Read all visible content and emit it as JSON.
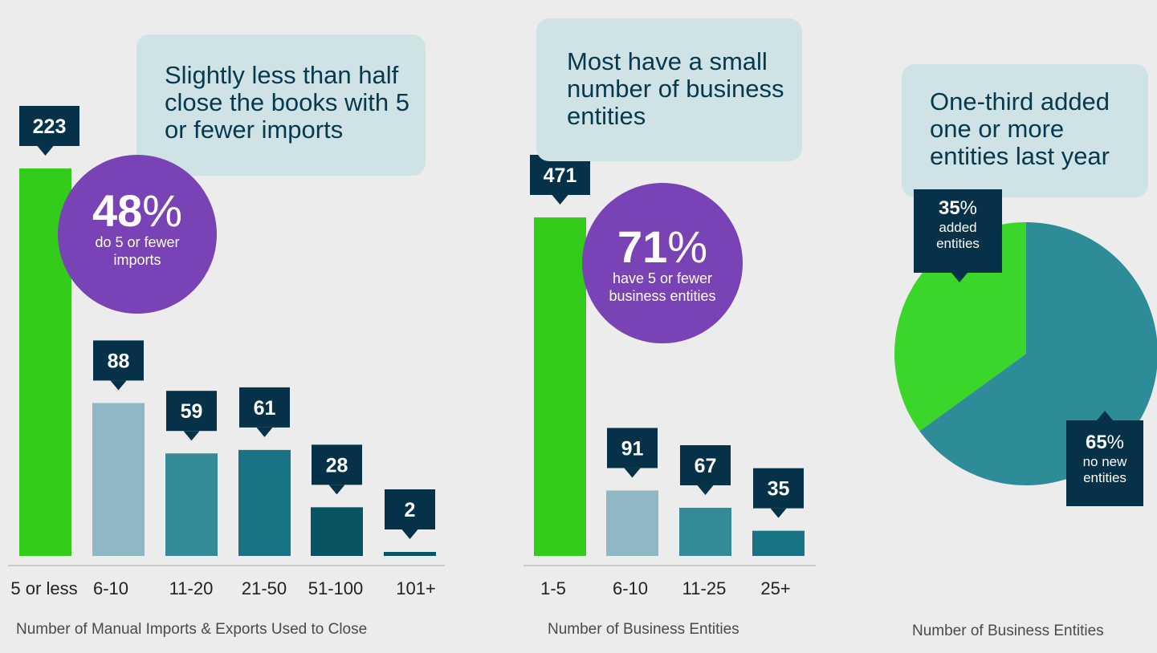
{
  "chart_data": [
    {
      "type": "bar",
      "xlabel": "Number of Manual Imports & Exports Used to Close",
      "categories": [
        "5 or less",
        "6-10",
        "11-20",
        "21-50",
        "51-100",
        "101+"
      ],
      "values": [
        223,
        88,
        59,
        61,
        28,
        2
      ],
      "colors": [
        "#33cc1a",
        "#8fb7c4",
        "#338a99",
        "#1a7285",
        "#095462",
        "#095462"
      ],
      "callout": "Slightly less than half close the books with 5 or fewer imports",
      "highlight": {
        "value": "48",
        "unit": "%",
        "text": "do 5 or fewer imports"
      }
    },
    {
      "type": "bar",
      "xlabel": "Number of Business Entities",
      "categories": [
        "1-5",
        "6-10",
        "11-25",
        "25+"
      ],
      "values": [
        471,
        91,
        67,
        35
      ],
      "colors": [
        "#33cc1a",
        "#8fb7c4",
        "#338a99",
        "#1a7285"
      ],
      "callout": "Most have a small number of business entities",
      "highlight": {
        "value": "71",
        "unit": "%",
        "text": "have 5 or fewer business entities"
      }
    },
    {
      "type": "pie",
      "xlabel": "Number of Business Entities",
      "callout": "One-third added one or more entities last year",
      "slices": [
        {
          "value": 35,
          "unit": "%",
          "text": "added entities",
          "color": "#3ad62a"
        },
        {
          "value": 65,
          "unit": "%",
          "text": "no new entities",
          "color": "#2e8c99"
        }
      ]
    }
  ],
  "colors": {
    "background": "#ececec",
    "label_box": "#053248",
    "callout_bg": "#cfe3e6",
    "highlight_circle": "#7a43b5"
  }
}
